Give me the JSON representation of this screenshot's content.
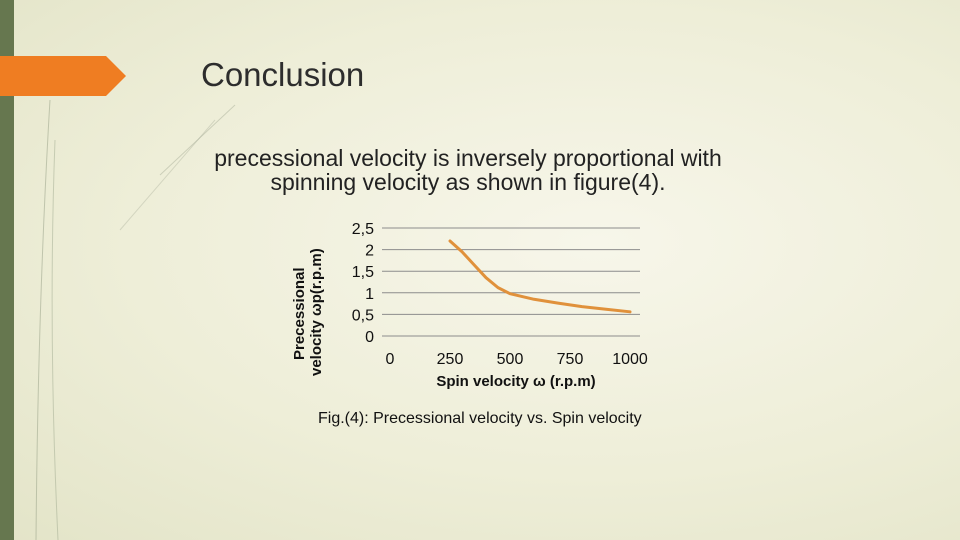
{
  "slide": {
    "title": "Conclusion",
    "text_line1": "precessional velocity is inversely proportional with",
    "text_line2": "spinning velocity as shown in figure(4).",
    "caption": "Fig.(4): Precessional velocity vs. Spin velocity"
  },
  "colors": {
    "accent": "#ef7d22",
    "left_bar": "#66774f",
    "curve": "#e0913b",
    "grid": "#8c8c8c"
  },
  "chart_data": {
    "type": "line",
    "xlabel": "Spin velocity ω (r.p.m)",
    "ylabel": "Precessional velocity ωp(r.p.m)",
    "x_ticks": [
      "0",
      "250",
      "500",
      "750",
      "1000"
    ],
    "y_ticks": [
      "0",
      "0,5",
      "1",
      "1,5",
      "2",
      "2,5"
    ],
    "xlim": [
      0,
      1000
    ],
    "ylim": [
      0,
      2.5
    ],
    "grid": true,
    "series": [
      {
        "name": "Precessional velocity",
        "x": [
          250,
          300,
          350,
          400,
          450,
          500,
          600,
          700,
          800,
          900,
          1000
        ],
        "y": [
          2.2,
          1.95,
          1.65,
          1.35,
          1.12,
          0.98,
          0.85,
          0.76,
          0.68,
          0.62,
          0.56
        ]
      }
    ]
  }
}
